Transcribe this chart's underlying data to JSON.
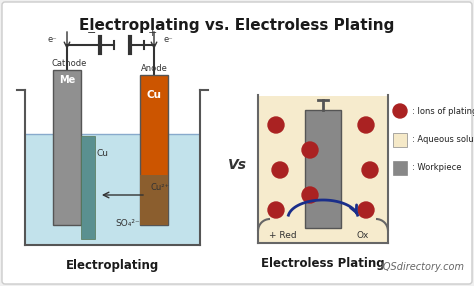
{
  "title": "Electroplating vs. Electroless Plating",
  "title_fontsize": 11,
  "title_fontweight": "bold",
  "bg_color": "#f0f0f0",
  "inner_bg": "#ffffff",
  "left_label": "Electroplating",
  "right_label": "Electroless Plating",
  "vs_text": "Vs",
  "watermark": "IQSdirectory.com",
  "legend_items": [
    {
      "color": "#aa2222",
      "text": ": Ions of plating material"
    },
    {
      "color": "#f5e9c8",
      "text": ": Aqueous solution"
    },
    {
      "color": "#888888",
      "text": ": Workpiece"
    }
  ],
  "solution_color_left": "#b8dde8",
  "cathode_color": "#909090",
  "anode_color": "#cc5500",
  "cu_deposit_color": "#a07840",
  "solution_color_right": "#f5e9c8",
  "workpiece_color": "#888888",
  "ion_color": "#aa2222",
  "arrow_color": "#1a2e8a",
  "wire_color": "#333333",
  "label_color": "#222222"
}
